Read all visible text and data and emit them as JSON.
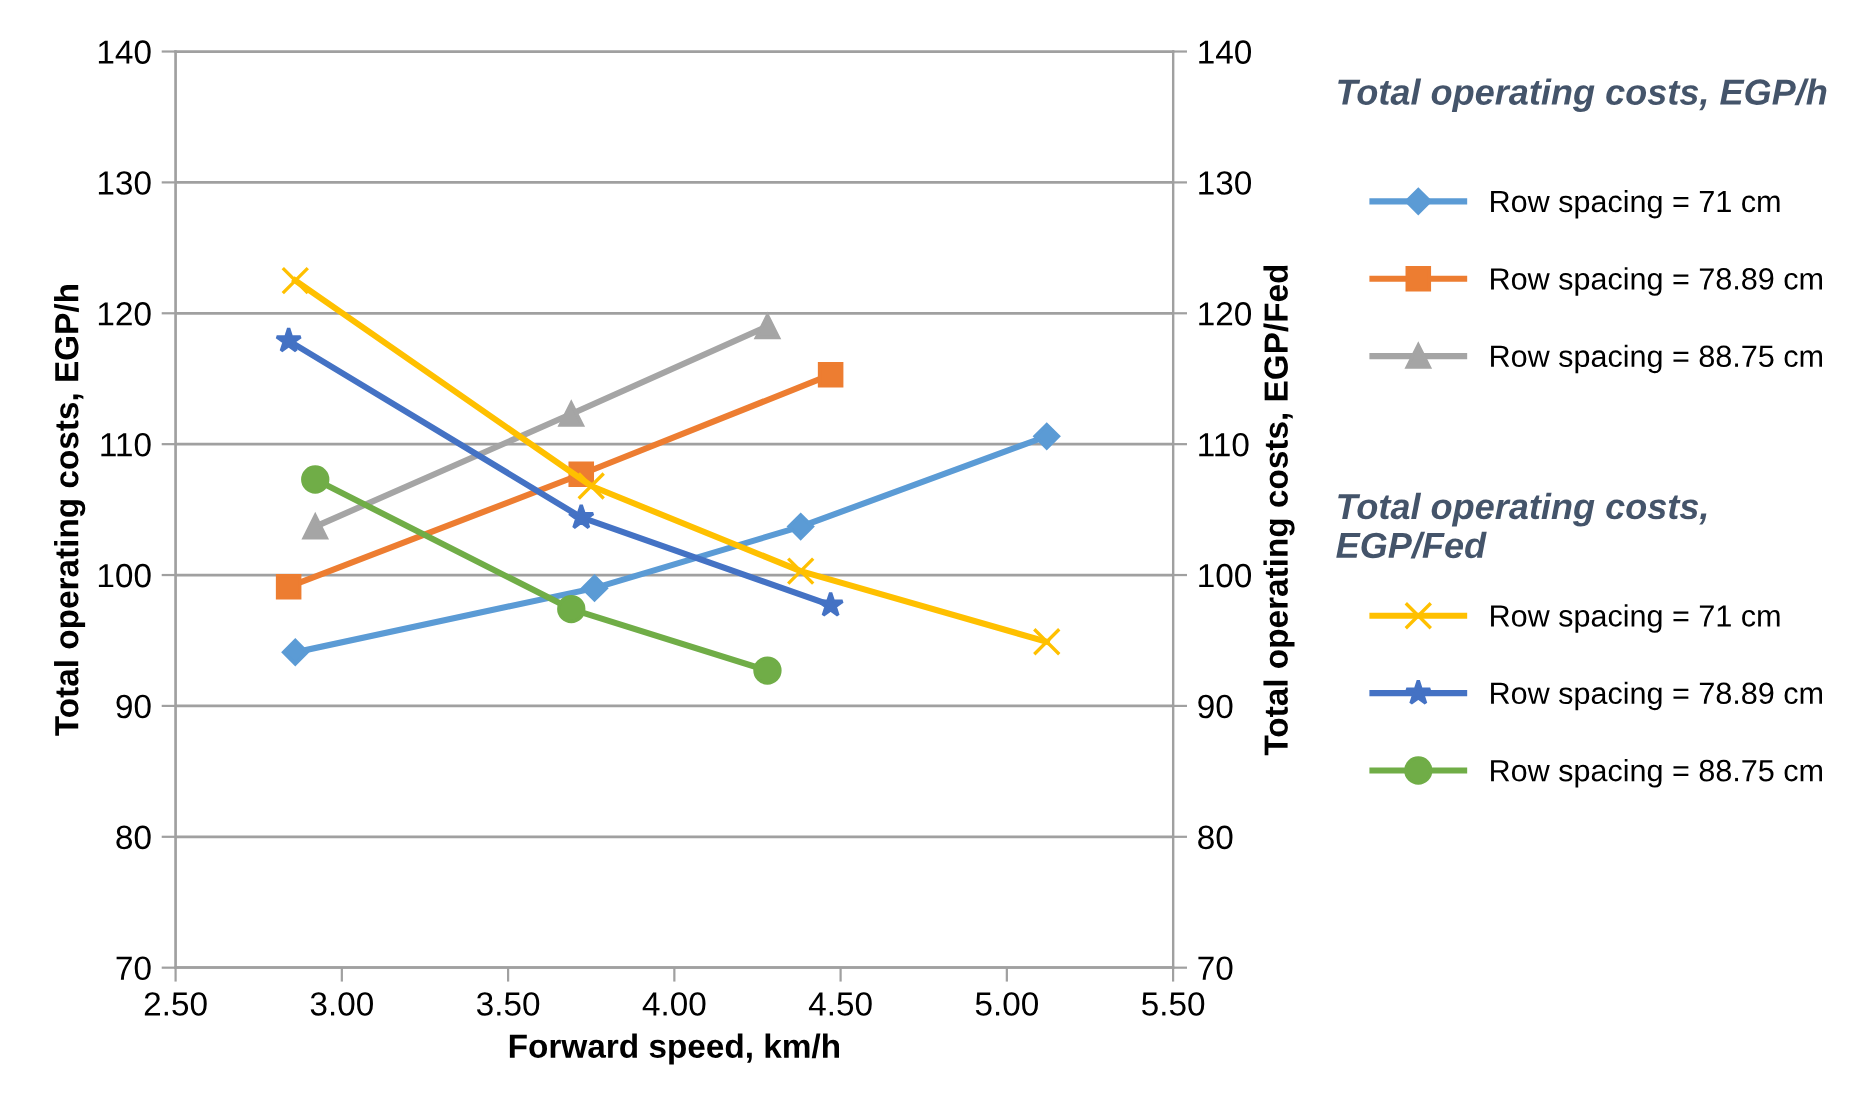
{
  "chart_data": {
    "type": "line",
    "xlabel": "Forward speed, km/h",
    "ylabel": "Total operating costs, EGP/h",
    "y2label": "Total operating costs, EGP/Fed",
    "xlim": [
      2.5,
      5.5
    ],
    "xticks": [
      {
        "value": 2.5,
        "label": "2.50"
      },
      {
        "value": 3.0,
        "label": "3.00"
      },
      {
        "value": 3.5,
        "label": "3.50"
      },
      {
        "value": 4.0,
        "label": "4.00"
      },
      {
        "value": 4.5,
        "label": "4.50"
      },
      {
        "value": 5.0,
        "label": "5.00"
      },
      {
        "value": 5.5,
        "label": "5.50"
      }
    ],
    "ylim": [
      70,
      140
    ],
    "yticks": [
      70,
      80,
      90,
      100,
      110,
      120,
      130,
      140
    ],
    "y2lim": [
      70,
      140
    ],
    "y2ticks": [
      70,
      80,
      90,
      100,
      110,
      120,
      130,
      140
    ],
    "grid": "y",
    "legend": "right",
    "annotations": [
      "Total operating costs, EGP/h",
      "Total operating costs, EGP/Fed"
    ],
    "series": [
      {
        "name": "Row spacing = 71 cm",
        "color": "#5b9bd5",
        "marker": "diamond",
        "axis": "y",
        "x": [
          2.86,
          3.76,
          4.38,
          5.12
        ],
        "values": [
          94.1,
          99.0,
          103.7,
          110.6
        ]
      },
      {
        "name": "Row spacing = 78.89 cm",
        "color": "#ed7d31",
        "marker": "square",
        "axis": "y",
        "x": [
          2.84,
          3.72,
          4.47
        ],
        "values": [
          99.1,
          107.7,
          115.3
        ]
      },
      {
        "name": "Row spacing = 88.75 cm",
        "color": "#a5a5a5",
        "marker": "triangle",
        "axis": "y",
        "x": [
          2.92,
          3.69,
          4.28
        ],
        "values": [
          103.7,
          112.3,
          119.0
        ]
      },
      {
        "name": "Row spacing = 71 cm",
        "color": "#ffc000",
        "marker": "cross",
        "axis": "y2",
        "x": [
          2.86,
          3.75,
          4.38,
          5.12
        ],
        "values": [
          122.5,
          106.8,
          100.3,
          94.9
        ]
      },
      {
        "name": "Row spacing = 78.89 cm",
        "color": "#4472c4",
        "marker": "star",
        "axis": "y2",
        "x": [
          2.84,
          3.72,
          4.47
        ],
        "values": [
          117.9,
          104.4,
          97.7
        ]
      },
      {
        "name": "Row spacing = 88.75 cm",
        "color": "#70ad47",
        "marker": "circle",
        "axis": "y2",
        "x": [
          2.92,
          3.69,
          4.28
        ],
        "values": [
          107.3,
          97.4,
          92.7
        ]
      }
    ]
  }
}
